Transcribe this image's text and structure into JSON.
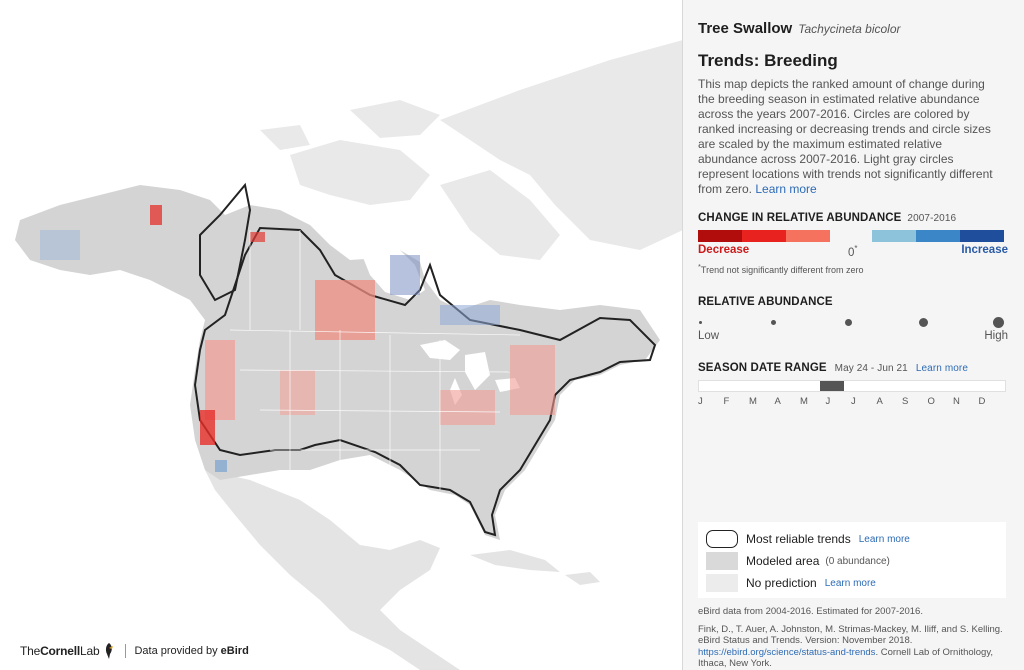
{
  "header": {
    "common_name": "Tree Swallow",
    "scientific_name": "Tachycineta bicolor"
  },
  "trends": {
    "title": "Trends: Breeding",
    "description": "This map depicts the ranked amount of change during the breeding season in estimated relative abundance across the years 2007-2016. Circles are colored by ranked increasing or decreasing trends and circle sizes are scaled by the maximum estimated relative abundance across 2007-2016. Light gray circles represent locations with trends not significantly different from zero.",
    "learn_more": "Learn more"
  },
  "change_legend": {
    "title": "CHANGE IN RELATIVE ABUNDANCE",
    "years": "2007-2016",
    "colors": [
      "#b10d0d",
      "#e8231f",
      "#f4725e",
      "#f5f5f5",
      "#8ec3dc",
      "#3a86c6",
      "#1e4e9c"
    ],
    "decrease_label": "Decrease",
    "zero_label": "0",
    "zero_mark": "*",
    "increase_label": "Increase",
    "footnote_mark": "*",
    "footnote": "Trend not significantly different from zero"
  },
  "abundance_legend": {
    "title": "RELATIVE ABUNDANCE",
    "low_label": "Low",
    "high_label": "High",
    "levels": [
      1,
      2,
      3,
      4,
      5
    ]
  },
  "season": {
    "title": "SEASON DATE RANGE",
    "range": "May 24 - Jun 21",
    "learn_more": "Learn more",
    "months": [
      "J",
      "F",
      "M",
      "A",
      "M",
      "J",
      "J",
      "A",
      "S",
      "O",
      "N",
      "D"
    ],
    "start_fraction": 0.395,
    "end_fraction": 0.473
  },
  "map_legend": {
    "reliable_label": "Most reliable trends",
    "reliable_link": "Learn more",
    "modeled_label": "Modeled area",
    "modeled_note": "(0 abundance)",
    "no_prediction_label": "No prediction",
    "no_prediction_link": "Learn more"
  },
  "citation": {
    "data_line": "eBird data from 2004-2016. Estimated for 2007-2016.",
    "reference": "Fink, D., T. Auer, A. Johnston, M. Strimas-Mackey, M. Iliff, and S. Kelling. eBird Status and Trends. Version: November 2018.",
    "url": "https://ebird.org/science/status-and-trends",
    "publisher": ". Cornell Lab of Ornithology, Ithaca, New York."
  },
  "footer": {
    "logo_the": "The",
    "logo_cornell": "Cornell",
    "logo_lab": "Lab",
    "credit_prefix": "Data provided by ",
    "credit_source": "eBird"
  }
}
